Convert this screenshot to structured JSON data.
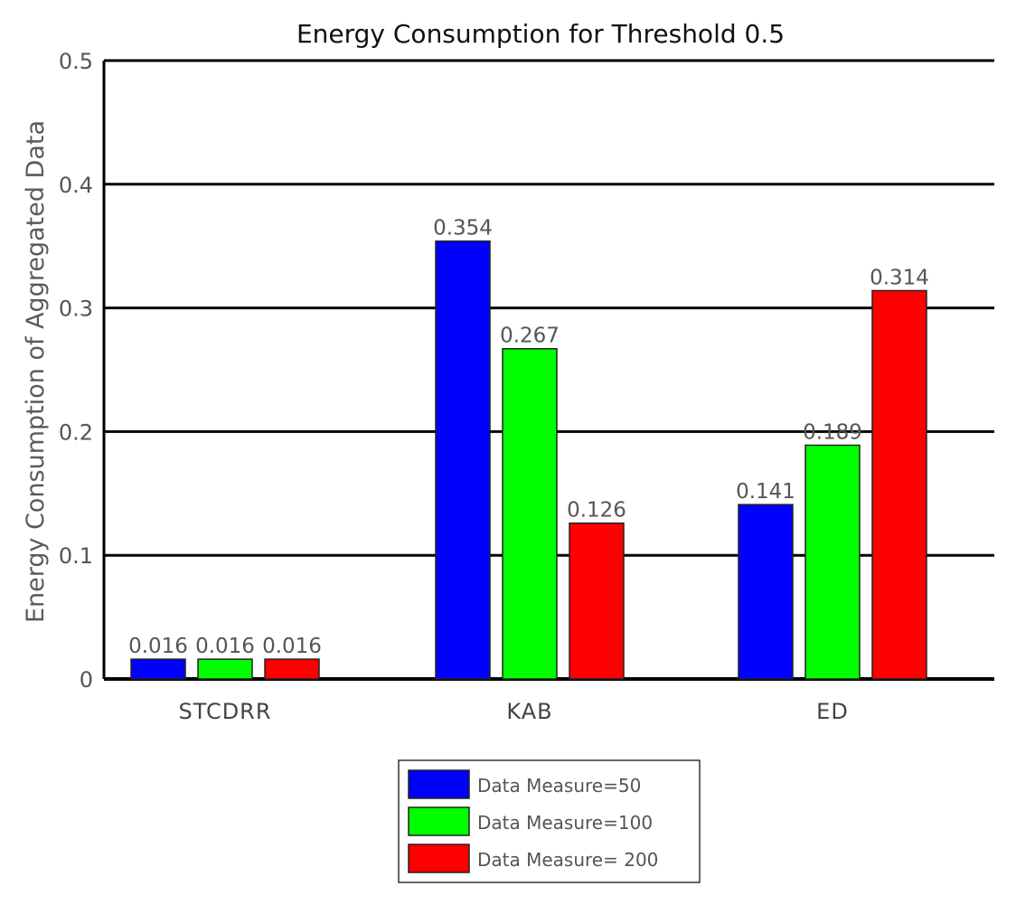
{
  "chart_data": {
    "type": "bar",
    "title": "Energy Consumption for Threshold 0.5",
    "xlabel": "",
    "ylabel": "Energy Consumption of Aggregated Data",
    "categories": [
      "STCDRR",
      "KAB",
      "ED"
    ],
    "series": [
      {
        "name": "Data Measure=50",
        "color": "#0000ff",
        "values": [
          0.016,
          0.354,
          0.141
        ],
        "labels": [
          "0.016",
          "0.354",
          "0.141"
        ]
      },
      {
        "name": "Data Measure=100",
        "color": "#00ff00",
        "values": [
          0.016,
          0.267,
          0.189
        ],
        "labels": [
          "0.016",
          "0.267",
          "0.189"
        ]
      },
      {
        "name": "Data Measure= 200",
        "color": "#ff0000",
        "values": [
          0.016,
          0.126,
          0.314
        ],
        "labels": [
          "0.016",
          "0.126",
          "0.314"
        ]
      }
    ],
    "ylim": [
      0,
      0.5
    ],
    "yticks": [
      0,
      0.1,
      0.2,
      0.3,
      0.4,
      0.5
    ],
    "ytick_labels": [
      "0",
      "0.1",
      "0.2",
      "0.3",
      "0.4",
      "0.5"
    ],
    "grid": true,
    "legend_position": "bottom-center"
  }
}
